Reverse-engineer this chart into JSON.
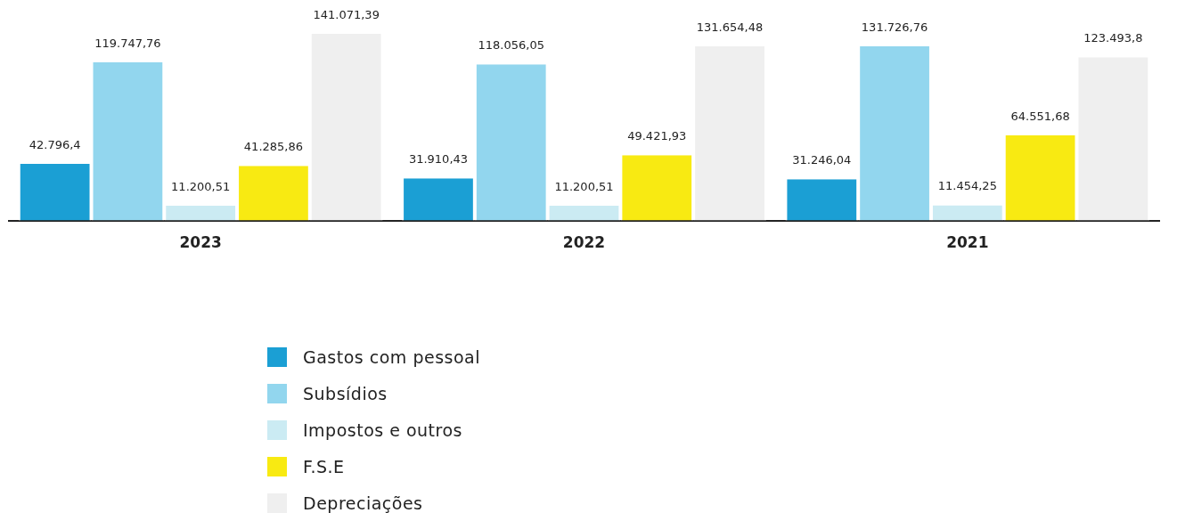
{
  "chart_data": {
    "type": "bar",
    "categories": [
      "2023",
      "2022",
      "2021"
    ],
    "series": [
      {
        "name": "Gastos com pessoal",
        "color": "#1b9fd4",
        "values": [
          42796.4,
          31910.43,
          31246.04
        ],
        "value_labels": [
          "42.796,4",
          "31.910,43",
          "31.246,04"
        ]
      },
      {
        "name": "Subsídios",
        "color": "#92d6ee",
        "values": [
          119747.76,
          118056.05,
          131726.76
        ],
        "value_labels": [
          "119.747,76",
          "118.056,05",
          "131.726,76"
        ]
      },
      {
        "name": "Impostos e outros",
        "color": "#cbebf3",
        "values": [
          11200.51,
          11200.51,
          11454.25
        ],
        "value_labels": [
          "11.200,51",
          "11.200,51",
          "11.454,25"
        ]
      },
      {
        "name": "F.S.E",
        "color": "#f8ea12",
        "values": [
          41285.86,
          49421.93,
          64551.68
        ],
        "value_labels": [
          "41.285,86",
          "49.421,93",
          "64.551,68"
        ]
      },
      {
        "name": "Depreciações",
        "color": "#efefef",
        "values": [
          141071.39,
          131654.48,
          123493.8
        ],
        "value_labels": [
          "141.071,39",
          "131.654,48",
          "123.493,8"
        ]
      }
    ],
    "legend": "bottom",
    "grid": false
  }
}
